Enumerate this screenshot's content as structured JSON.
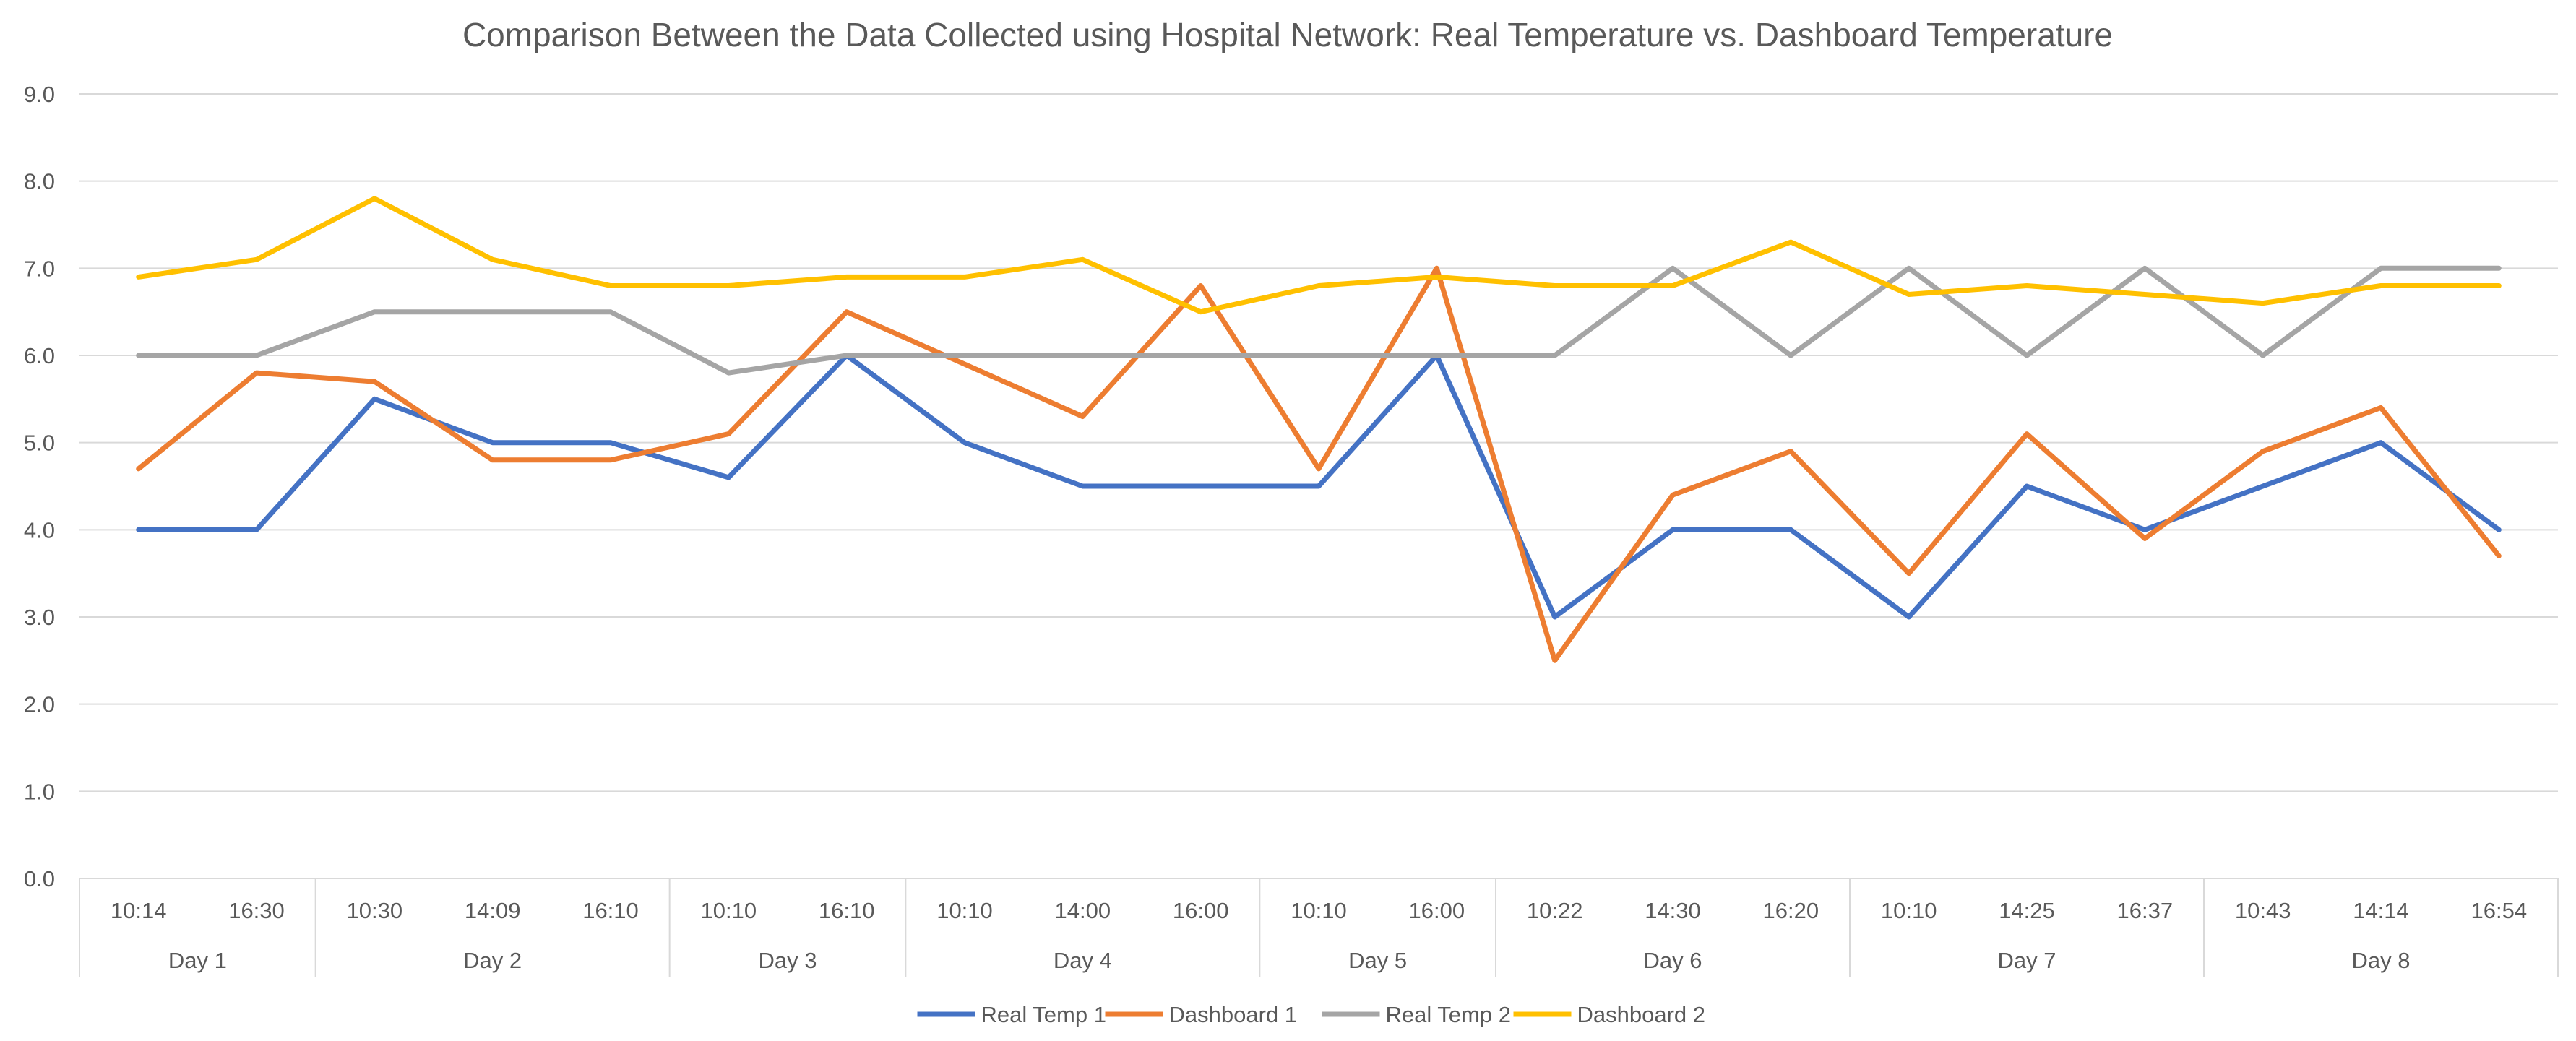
{
  "chart_data": {
    "type": "line",
    "title": "Comparison Between the Data Collected using Hospital Network: Real Temperature vs. Dashboard Temperature",
    "xlabel": "",
    "ylabel": "",
    "ylim": [
      0,
      9
    ],
    "y_ticks": [
      "0.0",
      "1.0",
      "2.0",
      "3.0",
      "4.0",
      "5.0",
      "6.0",
      "7.0",
      "8.0",
      "9.0"
    ],
    "grid": true,
    "legend_position": "bottom",
    "categories": [
      "10:14",
      "16:30",
      "10:30",
      "14:09",
      "16:10",
      "10:10",
      "16:10",
      "10:10",
      "14:00",
      "16:00",
      "10:10",
      "16:00",
      "10:22",
      "14:30",
      "16:20",
      "10:10",
      "14:25",
      "16:37",
      "10:43",
      "14:14",
      "16:54"
    ],
    "groups": [
      {
        "label": "Day 1",
        "count": 2
      },
      {
        "label": "Day 2",
        "count": 3
      },
      {
        "label": "Day 3",
        "count": 2
      },
      {
        "label": "Day 4",
        "count": 3
      },
      {
        "label": "Day 5",
        "count": 2
      },
      {
        "label": "Day 6",
        "count": 3
      },
      {
        "label": "Day 7",
        "count": 3
      },
      {
        "label": "Day 8",
        "count": 3
      }
    ],
    "series": [
      {
        "name": "Real Temp 1",
        "color": "#4472c4",
        "values": [
          4.0,
          4.0,
          5.5,
          5.0,
          5.0,
          4.6,
          6.0,
          5.0,
          4.5,
          4.5,
          4.5,
          6.0,
          3.0,
          4.0,
          4.0,
          3.0,
          4.5,
          4.0,
          4.5,
          5.0,
          4.0
        ]
      },
      {
        "name": "Dashboard 1",
        "color": "#ed7d31",
        "values": [
          4.7,
          5.8,
          5.7,
          4.8,
          4.8,
          5.1,
          6.5,
          5.9,
          5.3,
          6.8,
          4.7,
          7.0,
          2.5,
          4.4,
          4.9,
          3.5,
          5.1,
          3.9,
          4.9,
          5.4,
          3.7
        ]
      },
      {
        "name": "Real Temp 2",
        "color": "#a5a5a5",
        "values": [
          6.0,
          6.0,
          6.5,
          6.5,
          6.5,
          5.8,
          6.0,
          6.0,
          6.0,
          6.0,
          6.0,
          6.0,
          6.0,
          7.0,
          6.0,
          7.0,
          6.0,
          7.0,
          6.0,
          7.0,
          7.0
        ]
      },
      {
        "name": "Dashboard 2",
        "color": "#ffc000",
        "values": [
          6.9,
          7.1,
          7.8,
          7.1,
          6.8,
          6.8,
          6.9,
          6.9,
          7.1,
          6.5,
          6.8,
          6.9,
          6.8,
          6.8,
          7.3,
          6.7,
          6.8,
          6.7,
          6.6,
          6.8,
          6.8
        ]
      }
    ]
  }
}
